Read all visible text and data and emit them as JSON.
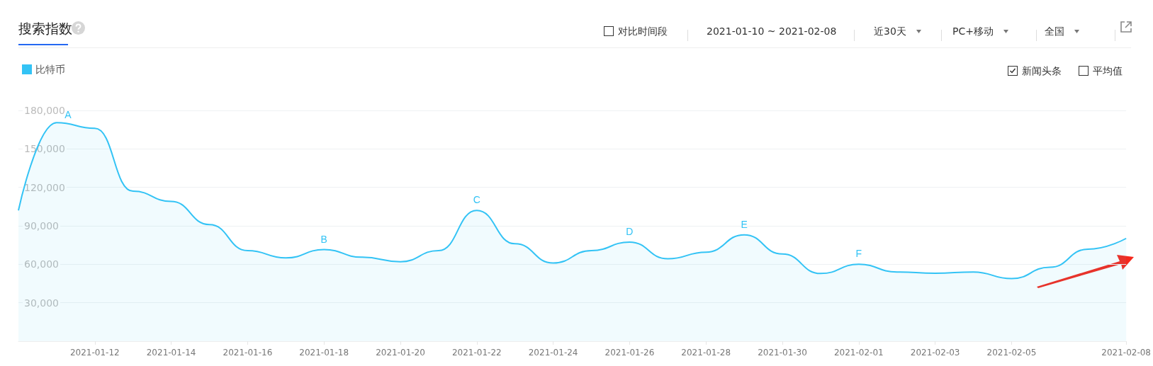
{
  "chart_data": {
    "type": "area",
    "title": "搜索指数",
    "annotations": [
      "对比时间段",
      "2021-01-10 ~ 2021-02-08",
      "近30天",
      "PC+移动",
      "全国",
      "新闻头条",
      "平均值",
      {
        "text": "A",
        "x": "2021-01-11",
        "y": 170500
      },
      {
        "text": "B",
        "x": "2021-01-18",
        "y": 71500
      },
      {
        "text": "C",
        "x": "2021-01-22",
        "y": 102000
      },
      {
        "text": "D",
        "x": "2021-01-26",
        "y": 77300
      },
      {
        "text": "E",
        "x": "2021-01-29",
        "y": 83000
      },
      {
        "text": "F",
        "x": "2021-02-01",
        "y": 60000
      }
    ],
    "x": [
      "2021-01-10",
      "2021-01-11",
      "2021-01-12",
      "2021-01-13",
      "2021-01-14",
      "2021-01-15",
      "2021-01-16",
      "2021-01-17",
      "2021-01-18",
      "2021-01-19",
      "2021-01-20",
      "2021-01-21",
      "2021-01-22",
      "2021-01-23",
      "2021-01-24",
      "2021-01-25",
      "2021-01-26",
      "2021-01-27",
      "2021-01-28",
      "2021-01-29",
      "2021-01-30",
      "2021-01-31",
      "2021-02-01",
      "2021-02-02",
      "2021-02-03",
      "2021-02-04",
      "2021-02-05",
      "2021-02-06",
      "2021-02-07",
      "2021-02-08"
    ],
    "series": [
      {
        "name": "比特币",
        "color": "#33c3f5",
        "values": [
          102000,
          170500,
          166000,
          117000,
          109000,
          91000,
          70700,
          65000,
          71500,
          65500,
          62000,
          70700,
          102000,
          76000,
          61000,
          70700,
          77300,
          64300,
          69500,
          83000,
          68000,
          52800,
          60000,
          54000,
          53000,
          54000,
          48800,
          57700,
          71800,
          80200
        ]
      }
    ],
    "xlim": [
      "2021-01-10",
      "2021-02-08"
    ],
    "xticks": [
      "2021-01-12",
      "2021-01-14",
      "2021-01-16",
      "2021-01-18",
      "2021-01-20",
      "2021-01-22",
      "2021-01-24",
      "2021-01-26",
      "2021-01-28",
      "2021-01-30",
      "2021-02-01",
      "2021-02-03",
      "2021-02-05",
      "2021-02-08"
    ],
    "ylim": [
      0,
      180000
    ],
    "yticks": [
      {
        "value": 0,
        "label": null
      },
      {
        "value": 30000,
        "label": "30,000"
      },
      {
        "value": 60000,
        "label": "60,000"
      },
      {
        "value": 90000,
        "label": "90,000"
      },
      {
        "value": 120000,
        "label": "120,000"
      },
      {
        "value": 150000,
        "label": "150,000"
      },
      {
        "value": 180000,
        "label": "180,000"
      }
    ],
    "grid": "y",
    "legend": "top left",
    "marker": "none",
    "line_style": "solid"
  }
}
